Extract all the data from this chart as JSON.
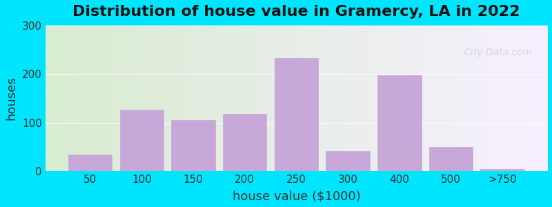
{
  "title": "Distribution of house value in Gramercy, LA in 2022",
  "xlabel": "house value ($1000)",
  "ylabel": "houses",
  "categories": [
    "50",
    "100",
    "150",
    "200",
    "250",
    "300",
    "400",
    "500",
    ">750"
  ],
  "values": [
    35,
    127,
    105,
    118,
    233,
    42,
    198,
    50,
    5
  ],
  "bar_color": "#c8a8d8",
  "bar_edge_color": "#c8a8d8",
  "ylim": [
    0,
    300
  ],
  "yticks": [
    0,
    100,
    200,
    300
  ],
  "background_outer": "#00e5ff",
  "background_inner_left": "#d8ecd0",
  "background_inner_right": "#f0f0f8",
  "title_fontsize": 16,
  "axis_label_fontsize": 13,
  "tick_fontsize": 11,
  "watermark": "City-Data.com"
}
